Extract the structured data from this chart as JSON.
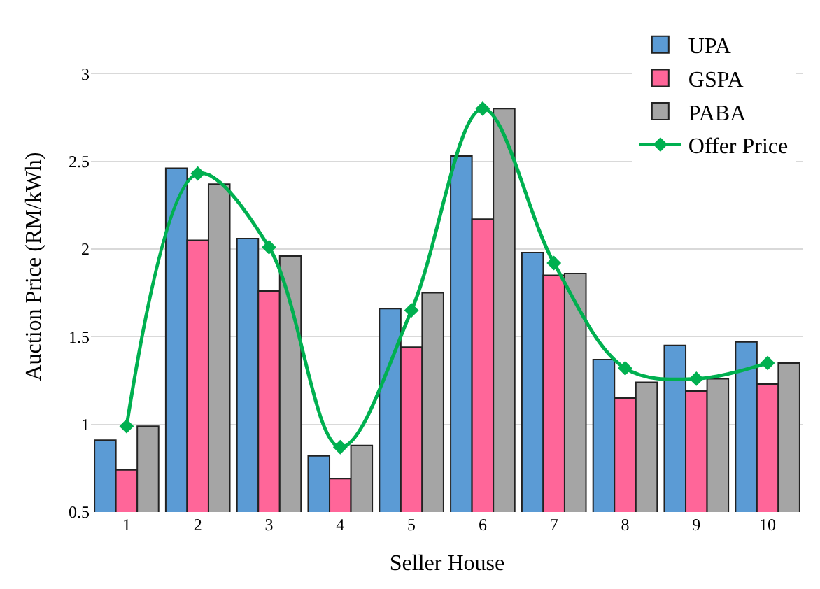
{
  "chart_data": {
    "type": "bar",
    "xlabel": "Seller House",
    "ylabel": "Auction Price (RM/kWh)",
    "categories": [
      "1",
      "2",
      "3",
      "4",
      "5",
      "6",
      "7",
      "8",
      "9",
      "10"
    ],
    "series": [
      {
        "name": "UPA",
        "color": "#5b9bd5",
        "values": [
          0.91,
          2.46,
          2.06,
          0.82,
          1.66,
          2.53,
          1.98,
          1.37,
          1.45,
          1.47
        ]
      },
      {
        "name": "GSPA",
        "color": "#ff6699",
        "values": [
          0.74,
          2.05,
          1.76,
          0.69,
          1.44,
          2.17,
          1.85,
          1.15,
          1.19,
          1.23
        ]
      },
      {
        "name": "PABA",
        "color": "#a5a5a5",
        "values": [
          0.99,
          2.37,
          1.96,
          0.88,
          1.75,
          2.8,
          1.86,
          1.24,
          1.26,
          1.35
        ]
      },
      {
        "name": "Offer Price",
        "color": "#00b050",
        "type": "line",
        "marker": "diamond",
        "values": [
          0.99,
          2.43,
          2.01,
          0.87,
          1.65,
          2.8,
          1.92,
          1.32,
          1.26,
          1.35
        ]
      }
    ],
    "ylim": [
      0.5,
      3.3
    ],
    "yticks": [
      0.5,
      1,
      1.5,
      2,
      2.5,
      3
    ],
    "grid": "y",
    "legend": "top right"
  }
}
